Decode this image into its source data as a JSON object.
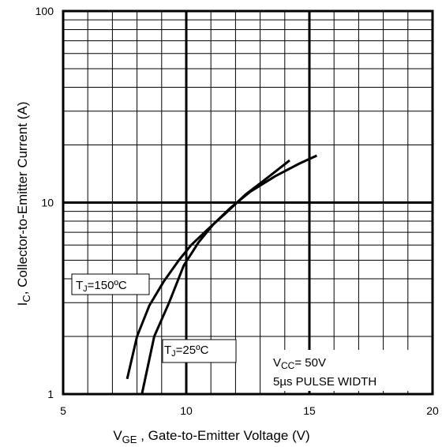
{
  "chart_data": {
    "type": "line",
    "x_scale": "linear",
    "y_scale": "log",
    "xlim": [
      5,
      20
    ],
    "ylim": [
      1,
      100
    ],
    "x_ticks": [
      "5",
      "10",
      "15",
      "20"
    ],
    "y_ticks": [
      "1",
      "10",
      "100"
    ],
    "grid": true,
    "xlabel": {
      "main": "V",
      "sub": "GE",
      "rest": " , Gate-to-Emitter Voltage (V)"
    },
    "ylabel": {
      "main": "I",
      "sub": "C",
      "rest": ",  Collector-to-Emitter Current (A)"
    },
    "series": [
      {
        "name": "TJ=150°C",
        "x": [
          7.6,
          8.0,
          8.5,
          9.1,
          9.7,
          10.2,
          10.9,
          11.6,
          12.4,
          13.3,
          14.2
        ],
        "y": [
          1.2,
          2.0,
          2.9,
          3.9,
          5.0,
          6.0,
          7.3,
          8.8,
          11.0,
          13.5,
          16.6
        ]
      },
      {
        "name": "TJ=25°C",
        "x": [
          8.2,
          8.7,
          9.3,
          9.9,
          10.5,
          11.1,
          11.8,
          12.6,
          13.6,
          14.6,
          15.3
        ],
        "y": [
          1.0,
          2.0,
          3.0,
          4.7,
          6.2,
          7.7,
          9.4,
          11.4,
          13.7,
          16.0,
          17.6
        ]
      }
    ],
    "labels": {
      "tj150": {
        "main": "T",
        "sub": "J",
        "rest": "=150ºC"
      },
      "tj25": {
        "main": "T",
        "sub": "J",
        "rest": "=25ºC"
      }
    },
    "annotation": {
      "line1_main": "V",
      "line1_sub": "CC",
      "line1_rest": "= 50V",
      "line2": "5µs PULSE WIDTH"
    }
  }
}
